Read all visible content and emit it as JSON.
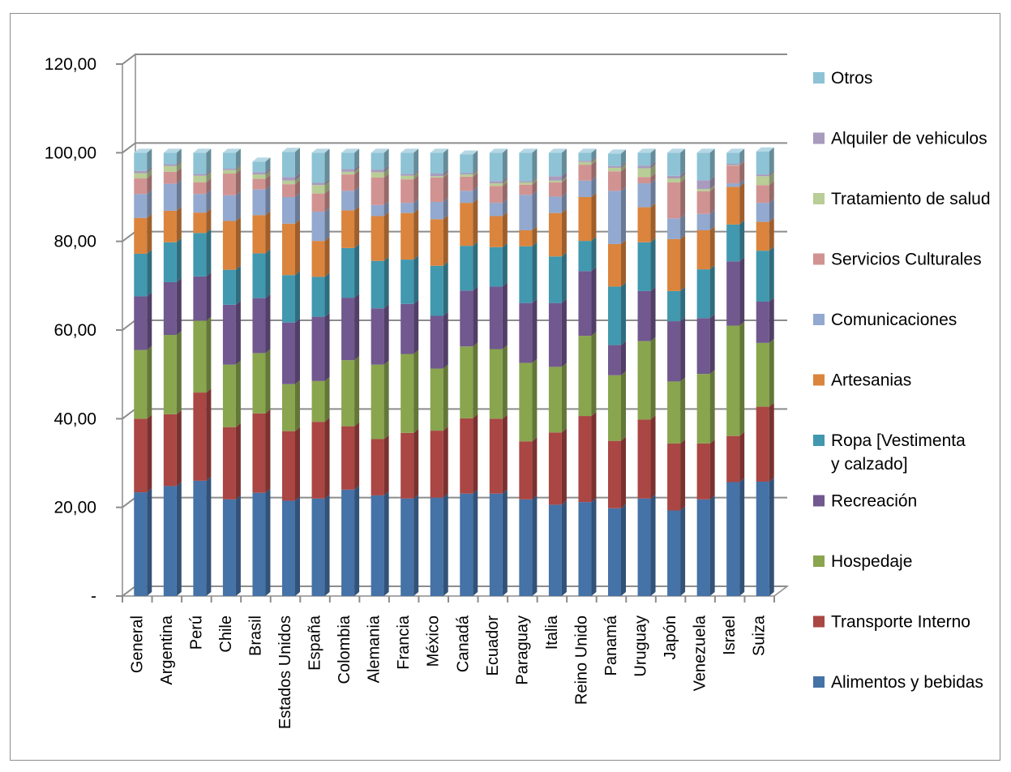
{
  "chart_data": {
    "type": "bar",
    "stacked": true,
    "three_d": true,
    "y_tick_labels": [
      "-",
      "20,00",
      "40,00",
      "60,00",
      "80,00",
      "100,00",
      "120,00"
    ],
    "ylim": [
      0,
      120
    ],
    "y_tick_step": 20,
    "grid": true,
    "legend_position": "right",
    "categories": [
      "General",
      "Argentina",
      "Perú",
      "Chile",
      "Brasil",
      "Estados Unidos",
      "España",
      "Colombia",
      "Alemania",
      "Francia",
      "México",
      "Canadá",
      "Ecuador",
      "Paraguay",
      "Italia",
      "Reino Unido",
      "Panamá",
      "Uruguay",
      "Japón",
      "Venezuela",
      "Israel",
      "Suiza"
    ],
    "series": [
      {
        "name": "Alimentos y bebidas",
        "color": "#4572a7",
        "values": [
          23.4,
          24.8,
          26.0,
          21.8,
          23.3,
          21.5,
          22.0,
          24.0,
          22.7,
          22.0,
          22.2,
          23.1,
          23.1,
          21.8,
          20.6,
          21.2,
          19.8,
          22.0,
          19.3,
          21.8,
          25.7,
          25.8
        ]
      },
      {
        "name": "Transporte Interno",
        "color": "#aa4643",
        "values": [
          16.6,
          16.2,
          19.9,
          16.3,
          17.9,
          15.7,
          17.3,
          14.3,
          12.7,
          14.8,
          15.1,
          17.0,
          16.9,
          13.1,
          16.3,
          19.4,
          15.2,
          17.8,
          15.1,
          12.6,
          10.4,
          16.9
        ]
      },
      {
        "name": "Hospedaje",
        "color": "#89a54e",
        "values": [
          15.5,
          17.9,
          16.2,
          14.1,
          13.6,
          10.6,
          9.2,
          14.9,
          16.8,
          17.8,
          14.0,
          16.2,
          15.7,
          17.7,
          14.8,
          18.1,
          14.8,
          17.7,
          14.0,
          15.7,
          24.9,
          14.4
        ]
      },
      {
        "name": "Recreación",
        "color": "#71588f",
        "values": [
          12.1,
          11.9,
          10.0,
          13.5,
          12.4,
          13.9,
          14.5,
          14.1,
          12.7,
          11.3,
          11.9,
          12.6,
          14.1,
          13.5,
          14.4,
          14.6,
          6.8,
          11.3,
          13.6,
          12.6,
          14.5,
          9.3
        ]
      },
      {
        "name": "Ropa [Vestimenta y calzado]",
        "color": "#4198af",
        "values": [
          9.6,
          9.0,
          9.8,
          7.9,
          10.1,
          10.7,
          9.0,
          11.2,
          10.7,
          10.0,
          11.3,
          10.1,
          8.9,
          12.8,
          10.5,
          6.8,
          13.2,
          11.0,
          6.8,
          11.0,
          8.3,
          11.5
        ]
      },
      {
        "name": "Artesanias",
        "color": "#db843d",
        "values": [
          8.1,
          7.1,
          4.6,
          11.0,
          8.6,
          11.6,
          8.1,
          8.5,
          10.1,
          10.5,
          10.5,
          9.7,
          7.0,
          3.6,
          9.8,
          9.9,
          9.6,
          7.9,
          11.7,
          8.8,
          8.5,
          6.5
        ]
      },
      {
        "name": "Comunicaciones",
        "color": "#93a9cf",
        "values": [
          5.4,
          6.1,
          4.2,
          5.8,
          5.8,
          6.0,
          6.6,
          4.4,
          2.5,
          2.3,
          3.9,
          2.7,
          3.0,
          8.0,
          3.7,
          3.7,
          12.0,
          5.4,
          4.7,
          3.7,
          0.8,
          4.3
        ]
      },
      {
        "name": "Servicios Culturales",
        "color": "#d19392",
        "values": [
          3.5,
          2.7,
          2.6,
          4.9,
          2.4,
          2.9,
          4.1,
          3.7,
          6.2,
          5.3,
          5.5,
          3.2,
          3.8,
          2.3,
          3.2,
          3.6,
          4.4,
          1.4,
          8.1,
          5.1,
          4.0,
          4.0
        ]
      },
      {
        "name": "Tratamiento de salud",
        "color": "#b9cd96",
        "values": [
          1.2,
          1.3,
          1.5,
          0.8,
          1.0,
          0.8,
          1.9,
          0.6,
          1.2,
          0.8,
          0.3,
          0.5,
          0.6,
          0.5,
          0.4,
          0.6,
          0.8,
          2.0,
          0.9,
          0.5,
          0.1,
          2.0
        ]
      },
      {
        "name": "Alquiler de vehiculos",
        "color": "#a99bbd",
        "values": [
          0.5,
          0.4,
          0.4,
          0.3,
          0.5,
          0.8,
          0.5,
          0.6,
          0.6,
          0.4,
          0.6,
          0.3,
          0.5,
          0.3,
          1.0,
          0.3,
          0.4,
          0.6,
          0.6,
          2.0,
          0.3,
          0.4
        ]
      },
      {
        "name": "Otros",
        "color": "#8dc3d5",
        "values": [
          4.1,
          2.6,
          4.8,
          3.6,
          2.4,
          5.7,
          6.8,
          3.7,
          3.8,
          4.8,
          4.7,
          4.2,
          6.4,
          6.4,
          5.3,
          1.8,
          2.8,
          2.9,
          5.2,
          6.2,
          2.5,
          5.2
        ]
      }
    ]
  }
}
